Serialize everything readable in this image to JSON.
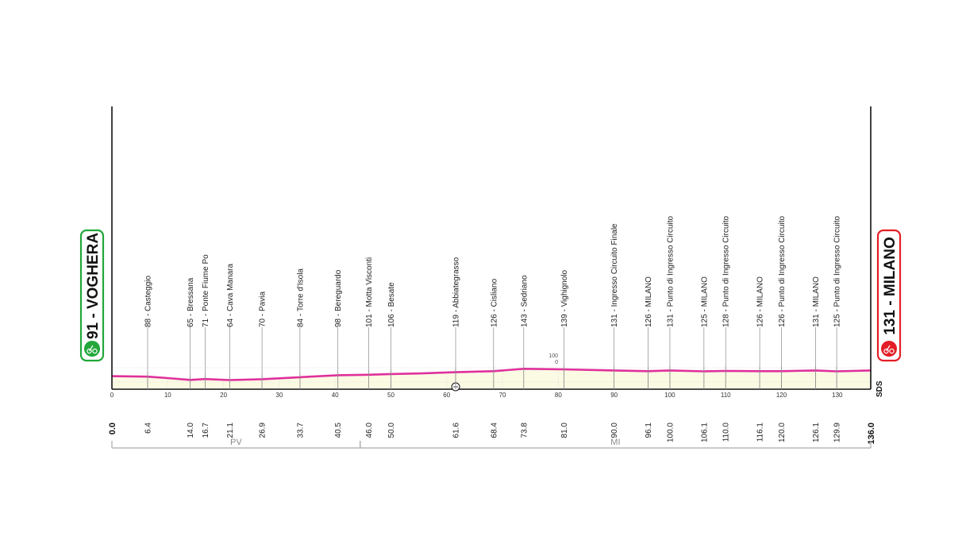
{
  "chart_data": {
    "type": "area",
    "title": "",
    "xlabel": "",
    "ylabel": "",
    "xlim": [
      0,
      136
    ],
    "ylim": [
      0,
      500
    ],
    "x_ticks": [
      0,
      10,
      20,
      30,
      40,
      50,
      60,
      70,
      80,
      90,
      100,
      110,
      120,
      130
    ],
    "y_ticks": [
      0,
      100
    ],
    "start": {
      "name": "91 - VOGHERA",
      "km": "0.0"
    },
    "finish": {
      "name": "131 - MILANO",
      "km": "136.0"
    },
    "end_mark": "SDS",
    "waypoints": [
      {
        "km": 6.4,
        "km_label": "6.4",
        "label": "88 - Casteggio"
      },
      {
        "km": 14.0,
        "km_label": "14.0",
        "label": "65 - Bressana"
      },
      {
        "km": 16.7,
        "km_label": "16.7",
        "label": "71 - Ponte Fiume Po"
      },
      {
        "km": 21.1,
        "km_label": "21.1",
        "label": "64 - Cava Manara"
      },
      {
        "km": 26.9,
        "km_label": "26.9",
        "label": "70 - Pavia"
      },
      {
        "km": 33.7,
        "km_label": "33.7",
        "label": "84 - Torre d'Isola"
      },
      {
        "km": 40.5,
        "km_label": "40.5",
        "label": "98 - Bereguardo"
      },
      {
        "km": 46.0,
        "km_label": "46.0",
        "label": "101 - Motta Visconti"
      },
      {
        "km": 50.0,
        "km_label": "50.0",
        "label": "106 - Besate"
      },
      {
        "km": 61.6,
        "km_label": "61.6",
        "label": "119 - Abbiategrasso"
      },
      {
        "km": 68.4,
        "km_label": "68.4",
        "label": "126 - Cisliano"
      },
      {
        "km": 73.8,
        "km_label": "73.8",
        "label": "143 - Sedriano"
      },
      {
        "km": 81.0,
        "km_label": "81.0",
        "label": "139 - Vighignolo"
      },
      {
        "km": 90.0,
        "km_label": "90.0",
        "label": "131 - Ingresso Circuito Finale"
      },
      {
        "km": 96.1,
        "km_label": "96.1",
        "label": "126 - MILANO"
      },
      {
        "km": 100.0,
        "km_label": "100.0",
        "label": "131 - Punto di Ingresso Circuito"
      },
      {
        "km": 106.1,
        "km_label": "106.1",
        "label": "125 - MILANO"
      },
      {
        "km": 110.0,
        "km_label": "110.0",
        "label": "128 - Punto di Ingresso Circuito"
      },
      {
        "km": 116.1,
        "km_label": "116.1",
        "label": "126 - MILANO"
      },
      {
        "km": 120.0,
        "km_label": "120.0",
        "label": "126 - Punto di Ingresso Circuito"
      },
      {
        "km": 126.1,
        "km_label": "126.1",
        "label": "131 - MILANO"
      },
      {
        "km": 129.9,
        "km_label": "129.9",
        "label": "125 - Punto di Ingresso Circuito"
      }
    ],
    "profile": {
      "x": [
        0,
        6.4,
        10,
        14,
        16.7,
        21.1,
        26.9,
        33.7,
        40.5,
        46,
        50,
        55,
        61.6,
        68.4,
        73.8,
        81,
        90,
        96.1,
        100,
        106.1,
        110,
        116.1,
        120,
        126.1,
        129.9,
        136
      ],
      "y": [
        91,
        88,
        78,
        65,
        71,
        64,
        70,
        84,
        98,
        101,
        106,
        110,
        119,
        126,
        143,
        139,
        131,
        126,
        131,
        125,
        128,
        126,
        126,
        131,
        125,
        131
      ]
    },
    "provinces": [
      {
        "name": "PV",
        "from": 0,
        "to": 44.5
      },
      {
        "name": "MI",
        "from": 44.5,
        "to": 136
      }
    ],
    "colors": {
      "profile": "#e0309c",
      "fill": "#fbfbe4",
      "start": "#22a73a",
      "finish": "#e41e26",
      "axis": "#111111",
      "grid": "#d6d6d6",
      "bracket": "#aaaaaa"
    }
  }
}
